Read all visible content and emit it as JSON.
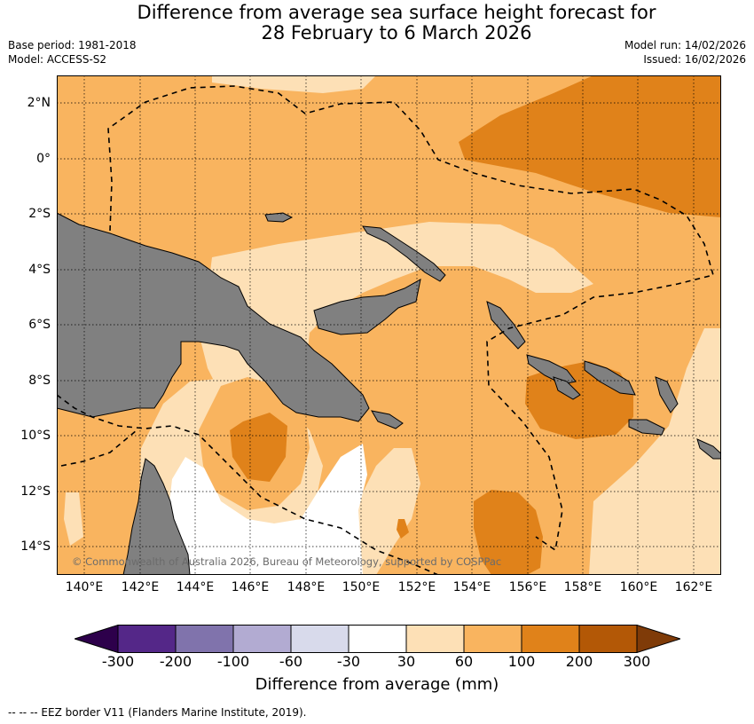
{
  "header": {
    "title_line1": "Difference from average sea surface height forecast for",
    "title_line2": "28 February to 6 March 2026",
    "base_period": "Base period: 1981-2018",
    "model": "Model: ACCESS-S2",
    "model_run": "Model run: 14/02/2026",
    "issued": "Issued: 16/02/2026"
  },
  "map": {
    "credit": "© Commonwealth of Australia 2026, Bureau of Meteorology, supported by COSPPac",
    "lat_labels": [
      "2°N",
      "0°",
      "2°S",
      "4°S",
      "6°S",
      "8°S",
      "10°S",
      "12°S",
      "14°S"
    ],
    "lon_labels": [
      "140°E",
      "142°E",
      "144°E",
      "146°E",
      "148°E",
      "150°E",
      "152°E",
      "154°E",
      "156°E",
      "158°E",
      "160°E",
      "162°E"
    ],
    "lon_range": [
      139,
      163
    ],
    "lat_range": [
      -15,
      3
    ],
    "land_color": "#808080",
    "colors": {
      "c30_60": "#fde0b6",
      "c60_100": "#f9b45f",
      "c100_200": "#e0821a",
      "neutral": "#ffffff"
    }
  },
  "colorbar": {
    "label": "Difference from average (mm)",
    "ticks": [
      "-300",
      "-200",
      "-100",
      "-60",
      "-30",
      "30",
      "60",
      "100",
      "200",
      "300"
    ],
    "colors": [
      "#2d004b",
      "#542788",
      "#8073ac",
      "#b2abd2",
      "#d8daeb",
      "#ffffff",
      "#fde0b6",
      "#f9b45f",
      "#e0821a",
      "#b35806",
      "#7f3b08"
    ]
  },
  "footnote": "--  --  -- EEZ border V11 (Flanders Marine Institute, 2019)."
}
